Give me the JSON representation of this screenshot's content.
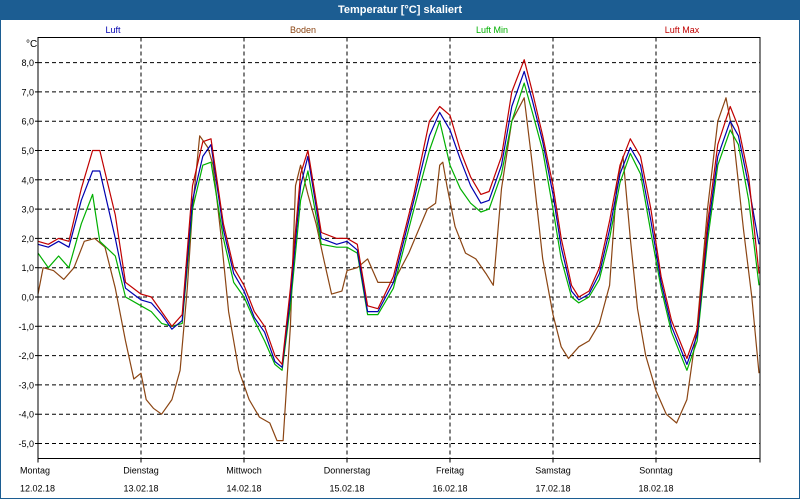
{
  "window": {
    "title": "Temperatur [°C] skaliert"
  },
  "chart_data": {
    "type": "line",
    "title": "Temperatur [°C] skaliert",
    "ylabel": "°C",
    "ylim": [
      -5.5,
      8.5
    ],
    "yticks": [
      "8,0",
      "7,0",
      "6,0",
      "5,0",
      "4,0",
      "3,0",
      "2,0",
      "1,0",
      "0,0",
      "-1,0",
      "-2,0",
      "-3,0",
      "-4,0",
      "-5,0"
    ],
    "ytick_values": [
      8,
      7,
      6,
      5,
      4,
      3,
      2,
      1,
      0,
      -1,
      -2,
      -3,
      -4,
      -5
    ],
    "x_domain": [
      0,
      7
    ],
    "day_labels": [
      {
        "day": "Montag",
        "date": "12.02.18"
      },
      {
        "day": "Dienstag",
        "date": "13.02.18"
      },
      {
        "day": "Mittwoch",
        "date": "14.02.18"
      },
      {
        "day": "Donnerstag",
        "date": "15.02.18"
      },
      {
        "day": "Freitag",
        "date": "16.02.18"
      },
      {
        "day": "Samstag",
        "date": "17.02.18"
      },
      {
        "day": "Sonntag",
        "date": "18.02.18"
      }
    ],
    "grid": true,
    "series": [
      {
        "name": "Luft",
        "color": "#0000b0",
        "points": [
          [
            0,
            1.8
          ],
          [
            0.1,
            1.7
          ],
          [
            0.2,
            1.9
          ],
          [
            0.3,
            1.7
          ],
          [
            0.42,
            3.3
          ],
          [
            0.53,
            4.3
          ],
          [
            0.6,
            4.3
          ],
          [
            0.75,
            2.0
          ],
          [
            0.85,
            0.3
          ],
          [
            1.0,
            -0.1
          ],
          [
            1.1,
            -0.2
          ],
          [
            1.2,
            -0.6
          ],
          [
            1.3,
            -1.1
          ],
          [
            1.4,
            -0.8
          ],
          [
            1.5,
            3.3
          ],
          [
            1.6,
            4.8
          ],
          [
            1.68,
            5.2
          ],
          [
            1.8,
            2.3
          ],
          [
            1.9,
            0.8
          ],
          [
            2.0,
            0.2
          ],
          [
            2.1,
            -0.7
          ],
          [
            2.2,
            -1.2
          ],
          [
            2.3,
            -2.2
          ],
          [
            2.37,
            -2.4
          ],
          [
            2.45,
            0.0
          ],
          [
            2.55,
            3.8
          ],
          [
            2.62,
            4.8
          ],
          [
            2.75,
            2.0
          ],
          [
            2.9,
            1.8
          ],
          [
            3.0,
            1.9
          ],
          [
            3.1,
            1.6
          ],
          [
            3.2,
            -0.5
          ],
          [
            3.3,
            -0.5
          ],
          [
            3.45,
            0.5
          ],
          [
            3.65,
            3.3
          ],
          [
            3.8,
            5.5
          ],
          [
            3.9,
            6.3
          ],
          [
            4.0,
            5.7
          ],
          [
            4.1,
            4.7
          ],
          [
            4.2,
            3.8
          ],
          [
            4.3,
            3.2
          ],
          [
            4.38,
            3.3
          ],
          [
            4.5,
            4.5
          ],
          [
            4.6,
            6.5
          ],
          [
            4.72,
            7.7
          ],
          [
            4.8,
            6.7
          ],
          [
            4.9,
            5.3
          ],
          [
            5.0,
            3.5
          ],
          [
            5.08,
            1.7
          ],
          [
            5.18,
            0.2
          ],
          [
            5.25,
            -0.1
          ],
          [
            5.35,
            0.1
          ],
          [
            5.45,
            0.8
          ],
          [
            5.55,
            2.3
          ],
          [
            5.65,
            4.2
          ],
          [
            5.75,
            5.1
          ],
          [
            5.85,
            4.5
          ],
          [
            5.95,
            2.6
          ],
          [
            6.05,
            0.5
          ],
          [
            6.15,
            -1.0
          ],
          [
            6.3,
            -2.3
          ],
          [
            6.4,
            -1.3
          ],
          [
            6.5,
            2.2
          ],
          [
            6.6,
            4.8
          ],
          [
            6.72,
            6.0
          ],
          [
            6.8,
            5.5
          ],
          [
            6.9,
            3.8
          ],
          [
            7.0,
            1.8
          ]
        ]
      },
      {
        "name": "Boden",
        "color": "#8b4513",
        "points": [
          [
            0,
            0.1
          ],
          [
            0.05,
            1.0
          ],
          [
            0.15,
            0.9
          ],
          [
            0.25,
            0.6
          ],
          [
            0.35,
            1.0
          ],
          [
            0.45,
            1.9
          ],
          [
            0.55,
            2.0
          ],
          [
            0.65,
            1.7
          ],
          [
            0.75,
            0.3
          ],
          [
            0.85,
            -1.5
          ],
          [
            0.93,
            -2.8
          ],
          [
            1.0,
            -2.6
          ],
          [
            1.05,
            -3.5
          ],
          [
            1.12,
            -3.8
          ],
          [
            1.2,
            -4.0
          ],
          [
            1.3,
            -3.5
          ],
          [
            1.38,
            -2.5
          ],
          [
            1.45,
            0.3
          ],
          [
            1.5,
            3.0
          ],
          [
            1.57,
            5.5
          ],
          [
            1.65,
            5.1
          ],
          [
            1.7,
            4.5
          ],
          [
            1.78,
            2.0
          ],
          [
            1.85,
            -0.5
          ],
          [
            1.95,
            -2.5
          ],
          [
            2.05,
            -3.5
          ],
          [
            2.15,
            -4.1
          ],
          [
            2.25,
            -4.3
          ],
          [
            2.32,
            -4.9
          ],
          [
            2.38,
            -4.9
          ],
          [
            2.45,
            -1.0
          ],
          [
            2.5,
            3.8
          ],
          [
            2.55,
            4.5
          ],
          [
            2.62,
            3.5
          ],
          [
            2.7,
            2.5
          ],
          [
            2.78,
            1.2
          ],
          [
            2.85,
            0.1
          ],
          [
            2.95,
            0.2
          ],
          [
            3.0,
            0.9
          ],
          [
            3.1,
            1.0
          ],
          [
            3.2,
            1.3
          ],
          [
            3.3,
            0.5
          ],
          [
            3.45,
            0.5
          ],
          [
            3.6,
            1.5
          ],
          [
            3.78,
            3.0
          ],
          [
            3.86,
            3.2
          ],
          [
            3.9,
            4.5
          ],
          [
            3.93,
            4.6
          ],
          [
            3.97,
            3.8
          ],
          [
            4.05,
            2.4
          ],
          [
            4.15,
            1.5
          ],
          [
            4.25,
            1.3
          ],
          [
            4.35,
            0.8
          ],
          [
            4.42,
            0.4
          ],
          [
            4.5,
            3.7
          ],
          [
            4.6,
            6.0
          ],
          [
            4.72,
            6.8
          ],
          [
            4.8,
            4.5
          ],
          [
            4.9,
            1.3
          ],
          [
            5.0,
            -0.6
          ],
          [
            5.08,
            -1.7
          ],
          [
            5.15,
            -2.1
          ],
          [
            5.25,
            -1.7
          ],
          [
            5.35,
            -1.5
          ],
          [
            5.45,
            -0.9
          ],
          [
            5.55,
            0.4
          ],
          [
            5.62,
            3.9
          ],
          [
            5.68,
            4.8
          ],
          [
            5.75,
            2.0
          ],
          [
            5.82,
            -0.4
          ],
          [
            5.9,
            -2.0
          ],
          [
            6.0,
            -3.2
          ],
          [
            6.1,
            -4.0
          ],
          [
            6.2,
            -4.3
          ],
          [
            6.3,
            -3.5
          ],
          [
            6.4,
            -1.0
          ],
          [
            6.5,
            3.0
          ],
          [
            6.6,
            6.0
          ],
          [
            6.68,
            6.8
          ],
          [
            6.75,
            5.5
          ],
          [
            6.85,
            2.3
          ],
          [
            6.93,
            0.0
          ],
          [
            7.0,
            -2.6
          ]
        ]
      },
      {
        "name": "Luft Min",
        "color": "#00b000",
        "points": [
          [
            0,
            1.5
          ],
          [
            0.1,
            1.0
          ],
          [
            0.2,
            1.4
          ],
          [
            0.3,
            1.0
          ],
          [
            0.42,
            2.5
          ],
          [
            0.53,
            3.5
          ],
          [
            0.6,
            1.9
          ],
          [
            0.75,
            1.4
          ],
          [
            0.85,
            0.0
          ],
          [
            1.0,
            -0.3
          ],
          [
            1.1,
            -0.5
          ],
          [
            1.2,
            -0.9
          ],
          [
            1.3,
            -1.0
          ],
          [
            1.4,
            -0.9
          ],
          [
            1.5,
            3.0
          ],
          [
            1.6,
            4.5
          ],
          [
            1.68,
            4.6
          ],
          [
            1.8,
            2.0
          ],
          [
            1.9,
            0.5
          ],
          [
            2.0,
            0.0
          ],
          [
            2.1,
            -0.8
          ],
          [
            2.2,
            -1.5
          ],
          [
            2.3,
            -2.3
          ],
          [
            2.37,
            -2.5
          ],
          [
            2.45,
            -0.3
          ],
          [
            2.55,
            3.3
          ],
          [
            2.62,
            4.3
          ],
          [
            2.75,
            1.8
          ],
          [
            2.9,
            1.7
          ],
          [
            3.0,
            1.7
          ],
          [
            3.1,
            1.5
          ],
          [
            3.2,
            -0.6
          ],
          [
            3.3,
            -0.6
          ],
          [
            3.45,
            0.3
          ],
          [
            3.65,
            3.0
          ],
          [
            3.8,
            5.0
          ],
          [
            3.9,
            6.0
          ],
          [
            4.0,
            4.5
          ],
          [
            4.1,
            3.7
          ],
          [
            4.2,
            3.2
          ],
          [
            4.3,
            2.9
          ],
          [
            4.38,
            3.0
          ],
          [
            4.5,
            4.2
          ],
          [
            4.6,
            6.0
          ],
          [
            4.72,
            7.3
          ],
          [
            4.8,
            6.3
          ],
          [
            4.9,
            5.0
          ],
          [
            5.0,
            3.0
          ],
          [
            5.08,
            1.3
          ],
          [
            5.18,
            0.0
          ],
          [
            5.25,
            -0.2
          ],
          [
            5.35,
            0.0
          ],
          [
            5.45,
            0.6
          ],
          [
            5.55,
            2.0
          ],
          [
            5.65,
            3.9
          ],
          [
            5.75,
            4.9
          ],
          [
            5.85,
            4.2
          ],
          [
            5.95,
            2.2
          ],
          [
            6.05,
            0.3
          ],
          [
            6.15,
            -1.2
          ],
          [
            6.3,
            -2.5
          ],
          [
            6.4,
            -1.5
          ],
          [
            6.5,
            1.9
          ],
          [
            6.6,
            4.5
          ],
          [
            6.72,
            5.7
          ],
          [
            6.8,
            5.2
          ],
          [
            6.9,
            3.3
          ],
          [
            7.0,
            0.4
          ]
        ]
      },
      {
        "name": "Luft Max",
        "color": "#c00000",
        "points": [
          [
            0,
            1.9
          ],
          [
            0.1,
            1.8
          ],
          [
            0.2,
            2.0
          ],
          [
            0.3,
            1.9
          ],
          [
            0.42,
            3.7
          ],
          [
            0.53,
            5.0
          ],
          [
            0.6,
            5.0
          ],
          [
            0.75,
            2.8
          ],
          [
            0.85,
            0.5
          ],
          [
            1.0,
            0.1
          ],
          [
            1.1,
            0.0
          ],
          [
            1.2,
            -0.5
          ],
          [
            1.3,
            -1.0
          ],
          [
            1.4,
            -0.6
          ],
          [
            1.5,
            3.8
          ],
          [
            1.6,
            5.3
          ],
          [
            1.68,
            5.4
          ],
          [
            1.8,
            2.5
          ],
          [
            1.9,
            1.0
          ],
          [
            2.0,
            0.4
          ],
          [
            2.1,
            -0.5
          ],
          [
            2.2,
            -1.0
          ],
          [
            2.3,
            -2.0
          ],
          [
            2.37,
            -2.3
          ],
          [
            2.45,
            0.3
          ],
          [
            2.55,
            4.2
          ],
          [
            2.62,
            5.0
          ],
          [
            2.75,
            2.2
          ],
          [
            2.9,
            2.0
          ],
          [
            3.0,
            2.0
          ],
          [
            3.1,
            1.8
          ],
          [
            3.2,
            -0.3
          ],
          [
            3.3,
            -0.4
          ],
          [
            3.45,
            0.7
          ],
          [
            3.65,
            3.5
          ],
          [
            3.8,
            6.0
          ],
          [
            3.9,
            6.5
          ],
          [
            4.0,
            6.2
          ],
          [
            4.1,
            5.0
          ],
          [
            4.2,
            4.1
          ],
          [
            4.3,
            3.5
          ],
          [
            4.38,
            3.6
          ],
          [
            4.5,
            4.8
          ],
          [
            4.6,
            7.0
          ],
          [
            4.72,
            8.1
          ],
          [
            4.8,
            7.0
          ],
          [
            4.9,
            5.5
          ],
          [
            5.0,
            3.8
          ],
          [
            5.08,
            2.0
          ],
          [
            5.18,
            0.4
          ],
          [
            5.25,
            0.0
          ],
          [
            5.35,
            0.2
          ],
          [
            5.45,
            1.0
          ],
          [
            5.55,
            2.6
          ],
          [
            5.65,
            4.5
          ],
          [
            5.75,
            5.4
          ],
          [
            5.85,
            4.8
          ],
          [
            5.95,
            3.0
          ],
          [
            6.05,
            0.7
          ],
          [
            6.15,
            -0.8
          ],
          [
            6.3,
            -2.1
          ],
          [
            6.4,
            -1.1
          ],
          [
            6.5,
            2.5
          ],
          [
            6.6,
            5.2
          ],
          [
            6.72,
            6.5
          ],
          [
            6.8,
            5.8
          ],
          [
            6.9,
            4.1
          ],
          [
            7.0,
            0.8
          ]
        ]
      }
    ]
  }
}
